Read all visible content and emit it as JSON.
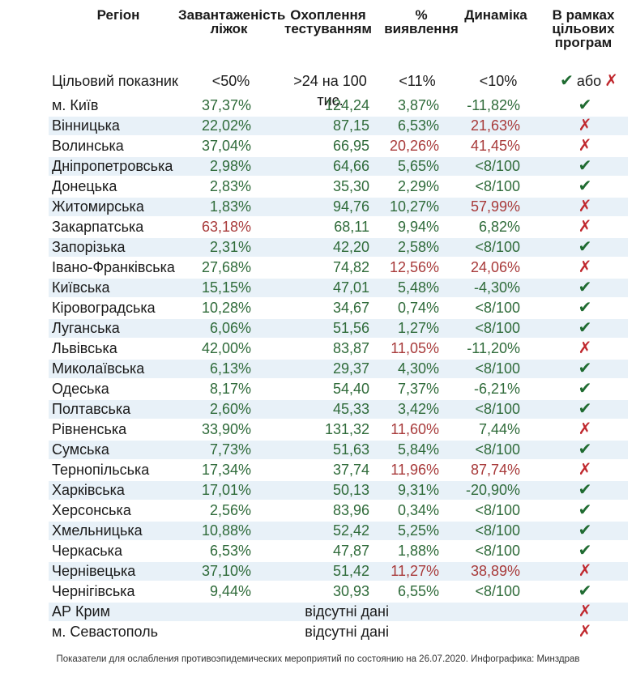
{
  "headers": {
    "region": "Регіон",
    "load": "Завантаженість ліжок",
    "testing": "Охоплення тестуванням",
    "detection": "% виявлення",
    "dynamics": "Динаміка",
    "programs": "В рамках цільових програм"
  },
  "target": {
    "label": "Цільовий показник",
    "load": "<50%",
    "testing": ">24 на 100 тис.",
    "detection": "<11%",
    "dynamics": "<10%",
    "check": "✔",
    "or": "або",
    "cross": "✗"
  },
  "rows": [
    {
      "region": "м. Київ",
      "load": "37,37%",
      "testing": "124,24",
      "detection": "3,87%",
      "dynamics": "-11,82%",
      "ok": "✔"
    },
    {
      "region": "Вінницька",
      "load": "22,02%",
      "testing": "87,15",
      "detection": "6,53%",
      "dynamics": "21,63%",
      "ok": "✗"
    },
    {
      "region": "Волинська",
      "load": "37,04%",
      "testing": "66,95",
      "detection": "20,26%",
      "dynamics": "41,45%",
      "ok": "✗"
    },
    {
      "region": "Дніпропетровська",
      "load": "2,98%",
      "testing": "64,66",
      "detection": "5,65%",
      "dynamics": "<8/100",
      "ok": "✔"
    },
    {
      "region": "Донецька",
      "load": "2,83%",
      "testing": "35,30",
      "detection": "2,29%",
      "dynamics": "<8/100",
      "ok": "✔"
    },
    {
      "region": "Житомирська",
      "load": "1,83%",
      "testing": "94,76",
      "detection": "10,27%",
      "dynamics": "57,99%",
      "ok": "✗"
    },
    {
      "region": "Закарпатська",
      "load": "63,18%",
      "testing": "68,11",
      "detection": "9,94%",
      "dynamics": "6,82%",
      "ok": "✗"
    },
    {
      "region": "Запорізька",
      "load": "2,31%",
      "testing": "42,20",
      "detection": "2,58%",
      "dynamics": "<8/100",
      "ok": "✔"
    },
    {
      "region": "Івано-Франківська",
      "load": "27,68%",
      "testing": "74,82",
      "detection": "12,56%",
      "dynamics": "24,06%",
      "ok": "✗"
    },
    {
      "region": "Київська",
      "load": "15,15%",
      "testing": "47,01",
      "detection": "5,48%",
      "dynamics": "-4,30%",
      "ok": "✔"
    },
    {
      "region": "Кіровоградська",
      "load": "10,28%",
      "testing": "34,67",
      "detection": "0,74%",
      "dynamics": "<8/100",
      "ok": "✔"
    },
    {
      "region": "Луганська",
      "load": "6,06%",
      "testing": "51,56",
      "detection": "1,27%",
      "dynamics": "<8/100",
      "ok": "✔"
    },
    {
      "region": "Львівська",
      "load": "42,00%",
      "testing": "83,87",
      "detection": "11,05%",
      "dynamics": "-11,20%",
      "ok": "✗"
    },
    {
      "region": "Миколаївська",
      "load": "6,13%",
      "testing": "29,37",
      "detection": "4,30%",
      "dynamics": "<8/100",
      "ok": "✔"
    },
    {
      "region": "Одеська",
      "load": "8,17%",
      "testing": "54,40",
      "detection": "7,37%",
      "dynamics": "-6,21%",
      "ok": "✔"
    },
    {
      "region": "Полтавська",
      "load": "2,60%",
      "testing": "45,33",
      "detection": "3,42%",
      "dynamics": "<8/100",
      "ok": "✔"
    },
    {
      "region": "Рівненська",
      "load": "33,90%",
      "testing": "131,32",
      "detection": "11,60%",
      "dynamics": "7,44%",
      "ok": "✗"
    },
    {
      "region": "Сумська",
      "load": "7,73%",
      "testing": "51,63",
      "detection": "5,84%",
      "dynamics": "<8/100",
      "ok": "✔"
    },
    {
      "region": "Тернопільська",
      "load": "17,34%",
      "testing": "37,74",
      "detection": "11,96%",
      "dynamics": "87,74%",
      "ok": "✗"
    },
    {
      "region": "Харківська",
      "load": "17,01%",
      "testing": "50,13",
      "detection": "9,31%",
      "dynamics": "-20,90%",
      "ok": "✔"
    },
    {
      "region": "Херсонська",
      "load": "2,56%",
      "testing": "83,96",
      "detection": "0,34%",
      "dynamics": "<8/100",
      "ok": "✔"
    },
    {
      "region": "Хмельницька",
      "load": "10,88%",
      "testing": "52,42",
      "detection": "5,25%",
      "dynamics": "<8/100",
      "ok": "✔"
    },
    {
      "region": "Черкаська",
      "load": "6,53%",
      "testing": "47,87",
      "detection": "1,88%",
      "dynamics": "<8/100",
      "ok": "✔"
    },
    {
      "region": "Чернівецька",
      "load": "37,10%",
      "testing": "51,42",
      "detection": "11,27%",
      "dynamics": "38,89%",
      "ok": "✗"
    },
    {
      "region": "Чернігівська",
      "load": "9,44%",
      "testing": "30,93",
      "detection": "6,55%",
      "dynamics": "<8/100",
      "ok": "✔"
    }
  ],
  "no_data_rows": [
    {
      "region": "АР Крим",
      "note": "відсутні дані",
      "ok": "✗"
    },
    {
      "region": "м. Севастополь",
      "note": "відсутні дані",
      "ok": "✗"
    }
  ],
  "colors": {
    "good": "#2f6b3a",
    "bad": "#a83a3a",
    "check": "#1f6b31",
    "cross": "#c0282e",
    "band": "#e8f1f8"
  },
  "footer": "Показатели для ослабления противоэпидемических мероприятий по состоянию на 26.07.2020. Инфографика: Минздрав"
}
